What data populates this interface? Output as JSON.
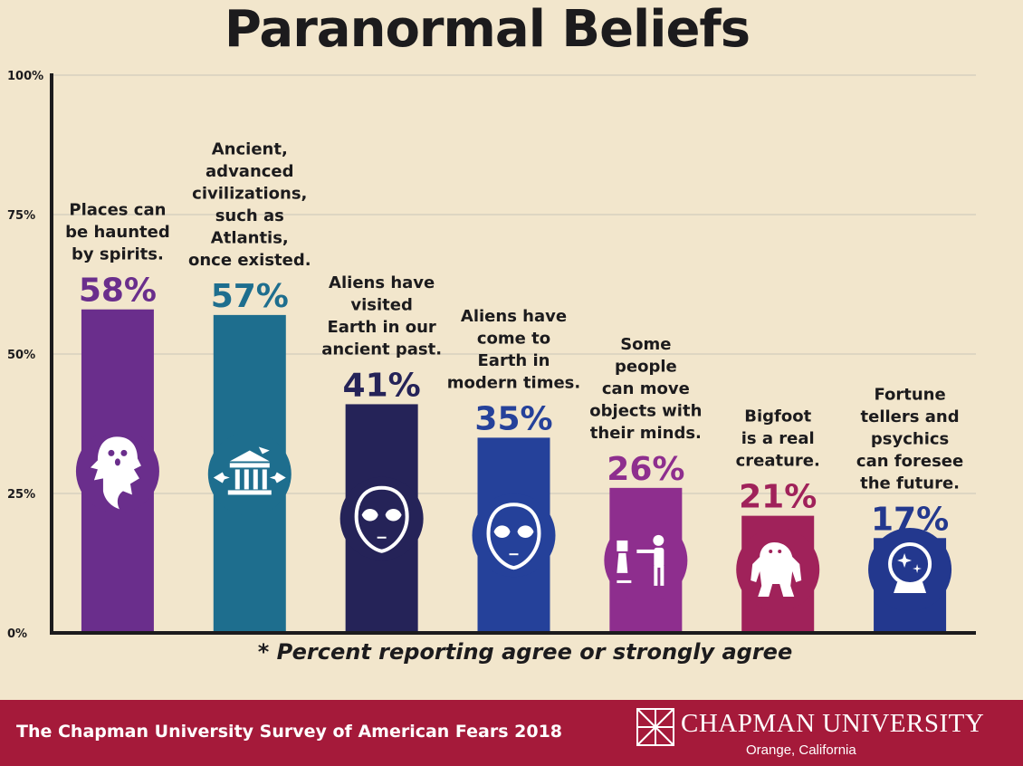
{
  "chart_data": {
    "type": "bar",
    "title": "Paranormal Beliefs",
    "xlabel": "",
    "ylabel": "",
    "ylim": [
      0,
      100
    ],
    "y_ticks": [
      "0%",
      "25%",
      "50%",
      "75%",
      "100%"
    ],
    "grid": true,
    "categories": [
      "Places can be haunted by spirits.",
      "Ancient, advanced civilizations, such as Atlantis, once existed.",
      "Aliens have visited Earth in our ancient past.",
      "Aliens have come to Earth in modern times.",
      "Some people can move objects with their minds.",
      "Bigfoot is a real creature.",
      "Fortune tellers and psychics can foresee the future."
    ],
    "category_lines": [
      [
        "Places can",
        "be haunted",
        "by spirits."
      ],
      [
        "Ancient,",
        "advanced",
        "civilizations,",
        "such as",
        "Atlantis,",
        "once existed."
      ],
      [
        "Aliens have",
        "visited",
        "Earth in our",
        "ancient past."
      ],
      [
        "Aliens have",
        "come to",
        "Earth in",
        "modern times."
      ],
      [
        "Some",
        "people",
        "can move",
        "objects with",
        "their minds."
      ],
      [
        "Bigfoot",
        "is a real",
        "creature."
      ],
      [
        "Fortune",
        "tellers and",
        "psychics",
        "can foresee",
        "the future."
      ]
    ],
    "values": [
      58,
      57,
      41,
      35,
      26,
      21,
      17
    ],
    "data_labels": [
      "58%",
      "57%",
      "41%",
      "35%",
      "26%",
      "21%",
      "17%"
    ],
    "bar_colors": [
      "#6a2e8c",
      "#1e6e8e",
      "#252358",
      "#25419a",
      "#8e2e8e",
      "#a0225a",
      "#23388e"
    ],
    "icons": [
      "ghost-icon",
      "sunken-temple-icon",
      "alien-head-icon",
      "alien-head-icon",
      "telekinesis-icon",
      "bigfoot-icon",
      "crystal-ball-icon"
    ],
    "footnote": "* Percent reporting agree or strongly agree"
  },
  "footer": {
    "survey_name": "The Chapman University Survey of American Fears 2018",
    "university": "CHAPMAN UNIVERSITY",
    "location": "Orange, California"
  },
  "colors": {
    "background": "#f2e6cc",
    "footer": "#a51a3a",
    "axis": "#1c1b1d",
    "text": "#1c1b1d"
  }
}
